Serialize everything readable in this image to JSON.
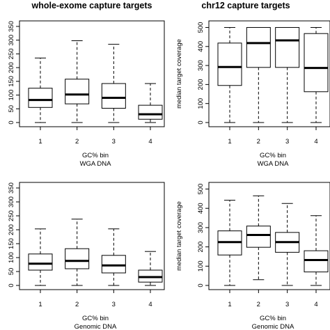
{
  "chart_data": [
    {
      "type": "box",
      "title": "whole-exome capture targets",
      "xlabel": "GC% bin",
      "xlabel2": "WGA DNA",
      "ylabel": "",
      "categories": [
        "1",
        "2",
        "3",
        "4"
      ],
      "yticks": [
        0,
        50,
        100,
        150,
        200,
        250,
        300,
        350
      ],
      "ylim": [
        0,
        360
      ],
      "boxes": [
        {
          "category": "1",
          "whisker_low": 0,
          "q1": 55,
          "median": 82,
          "q3": 125,
          "whisker_high": 235
        },
        {
          "category": "2",
          "whisker_low": 0,
          "q1": 68,
          "median": 102,
          "q3": 158,
          "whisker_high": 298
        },
        {
          "category": "3",
          "whisker_low": 0,
          "q1": 52,
          "median": 90,
          "q3": 142,
          "whisker_high": 285
        },
        {
          "category": "4",
          "whisker_low": 0,
          "q1": 12,
          "median": 30,
          "q3": 63,
          "whisker_high": 142
        }
      ]
    },
    {
      "type": "box",
      "title": "chr12 capture targets",
      "xlabel": "GC% bin",
      "xlabel2": "WGA DNA",
      "ylabel": "median target coverage",
      "categories": [
        "1",
        "2",
        "3",
        "4"
      ],
      "yticks": [
        0,
        100,
        200,
        300,
        400,
        500
      ],
      "ylim": [
        0,
        520
      ],
      "boxes": [
        {
          "category": "1",
          "whisker_low": 0,
          "q1": 195,
          "median": 292,
          "q3": 418,
          "whisker_high": 500
        },
        {
          "category": "2",
          "whisker_low": 0,
          "q1": 290,
          "median": 418,
          "q3": 500,
          "whisker_high": 500
        },
        {
          "category": "3",
          "whisker_low": 0,
          "q1": 290,
          "median": 432,
          "q3": 500,
          "whisker_high": 500
        },
        {
          "category": "4",
          "whisker_low": 0,
          "q1": 162,
          "median": 287,
          "q3": 468,
          "whisker_high": 500
        }
      ]
    },
    {
      "type": "box",
      "title": "",
      "xlabel": "GC% bin",
      "xlabel2": "Genomic DNA",
      "ylabel": "",
      "categories": [
        "1",
        "2",
        "3",
        "4"
      ],
      "yticks": [
        0,
        50,
        100,
        150,
        200,
        250,
        300,
        350
      ],
      "ylim": [
        0,
        360
      ],
      "boxes": [
        {
          "category": "1",
          "whisker_low": 0,
          "q1": 55,
          "median": 78,
          "q3": 113,
          "whisker_high": 203
        },
        {
          "category": "2",
          "whisker_low": 0,
          "q1": 60,
          "median": 88,
          "q3": 132,
          "whisker_high": 238
        },
        {
          "category": "3",
          "whisker_low": 0,
          "q1": 45,
          "median": 72,
          "q3": 108,
          "whisker_high": 203
        },
        {
          "category": "4",
          "whisker_low": 0,
          "q1": 12,
          "median": 30,
          "q3": 55,
          "whisker_high": 122
        }
      ]
    },
    {
      "type": "box",
      "title": "",
      "xlabel": "GC% bin",
      "xlabel2": "Genomic DNA",
      "ylabel": "median target coverage",
      "categories": [
        "1",
        "2",
        "3",
        "4"
      ],
      "yticks": [
        0,
        100,
        200,
        300,
        400,
        500
      ],
      "ylim": [
        0,
        520
      ],
      "boxes": [
        {
          "category": "1",
          "whisker_low": 0,
          "q1": 158,
          "median": 225,
          "q3": 283,
          "whisker_high": 442
        },
        {
          "category": "2",
          "whisker_low": 30,
          "q1": 198,
          "median": 262,
          "q3": 308,
          "whisker_high": 465
        },
        {
          "category": "3",
          "whisker_low": 0,
          "q1": 172,
          "median": 225,
          "q3": 275,
          "whisker_high": 425
        },
        {
          "category": "4",
          "whisker_low": 0,
          "q1": 70,
          "median": 132,
          "q3": 180,
          "whisker_high": 362
        }
      ]
    }
  ]
}
